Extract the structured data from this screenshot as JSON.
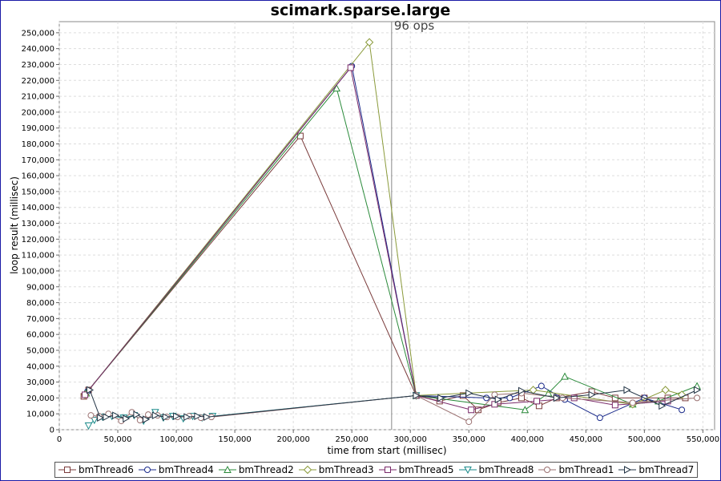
{
  "chart_data": {
    "type": "line",
    "title": "scimark.sparse.large",
    "xlabel": "time from start (millisec)",
    "ylabel": "loop result (millisec)",
    "xlim": [
      0,
      560000
    ],
    "ylim": [
      0,
      257000
    ],
    "x_ticks": [
      "0",
      "50,000",
      "100,000",
      "150,000",
      "200,000",
      "250,000",
      "300,000",
      "350,000",
      "400,000",
      "450,000",
      "500,000",
      "550,000"
    ],
    "y_ticks": [
      "0",
      "10,000",
      "20,000",
      "30,000",
      "40,000",
      "50,000",
      "60,000",
      "70,000",
      "80,000",
      "90,000",
      "100,000",
      "110,000",
      "120,000",
      "130,000",
      "140,000",
      "150,000",
      "160,000",
      "170,000",
      "180,000",
      "190,000",
      "200,000",
      "210,000",
      "220,000",
      "230,000",
      "240,000",
      "250,000"
    ],
    "grid": true,
    "legend_position": "bottom",
    "annotation": {
      "x": 284000,
      "label": "96 ops"
    },
    "series": [
      {
        "name": "bmThread6",
        "color": "#7a3b3b",
        "marker": "square",
        "points": [
          [
            21000,
            21000
          ],
          [
            25000,
            25000
          ],
          [
            206000,
            185000
          ],
          [
            305000,
            21500
          ],
          [
            325000,
            18000
          ],
          [
            345000,
            21500
          ],
          [
            358000,
            12500
          ],
          [
            375000,
            17000
          ],
          [
            395000,
            20000
          ],
          [
            410000,
            15000
          ],
          [
            425000,
            20000
          ],
          [
            455000,
            24000
          ],
          [
            475000,
            20000
          ],
          [
            500000,
            20000
          ],
          [
            520000,
            20000
          ],
          [
            535000,
            20000
          ]
        ]
      },
      {
        "name": "bmThread4",
        "color": "#1a2a8a",
        "marker": "circle",
        "points": [
          [
            24000,
            24000
          ],
          [
            250000,
            229000
          ],
          [
            305000,
            21500
          ],
          [
            365000,
            20000
          ],
          [
            385000,
            20000
          ],
          [
            412000,
            27500
          ],
          [
            432000,
            19000
          ],
          [
            462000,
            7500
          ],
          [
            500000,
            20000
          ],
          [
            532000,
            12500
          ]
        ]
      },
      {
        "name": "bmThread2",
        "color": "#2a8a3a",
        "marker": "triangle-up",
        "points": [
          [
            23000,
            23000
          ],
          [
            237000,
            215000
          ],
          [
            305000,
            21500
          ],
          [
            398000,
            12500
          ],
          [
            418000,
            23000
          ],
          [
            432000,
            33500
          ],
          [
            490000,
            16000
          ],
          [
            512000,
            18000
          ],
          [
            545000,
            27500
          ]
        ]
      },
      {
        "name": "bmThread3",
        "color": "#8a9a3a",
        "marker": "diamond",
        "points": [
          [
            22000,
            22000
          ],
          [
            265000,
            244000
          ],
          [
            305000,
            21500
          ],
          [
            405000,
            25000
          ],
          [
            490000,
            16000
          ],
          [
            518000,
            25000
          ],
          [
            532000,
            22000
          ]
        ]
      },
      {
        "name": "bmThread5",
        "color": "#7a2a6a",
        "marker": "square",
        "points": [
          [
            22000,
            22000
          ],
          [
            249000,
            228000
          ],
          [
            305000,
            21500
          ],
          [
            352000,
            12500
          ],
          [
            372000,
            16000
          ],
          [
            408000,
            18000
          ],
          [
            440000,
            20000
          ],
          [
            475000,
            15500
          ],
          [
            520000,
            18000
          ]
        ]
      },
      {
        "name": "bmThread8",
        "color": "#1a8a8a",
        "marker": "triangle-down",
        "points": [
          [
            25000,
            2500
          ],
          [
            30000,
            6000
          ],
          [
            37000,
            8000
          ],
          [
            45000,
            8500
          ],
          [
            55000,
            7500
          ],
          [
            64000,
            9000
          ],
          [
            72000,
            5500
          ],
          [
            82000,
            11000
          ],
          [
            89000,
            7500
          ],
          [
            97000,
            8500
          ],
          [
            106000,
            7000
          ],
          [
            114000,
            8500
          ],
          [
            122000,
            7500
          ],
          [
            131000,
            8500
          ],
          [
            305000,
            21500
          ]
        ]
      },
      {
        "name": "bmThread1",
        "color": "#9a7070",
        "marker": "circle",
        "points": [
          [
            27000,
            9000
          ],
          [
            34000,
            8500
          ],
          [
            42000,
            10000
          ],
          [
            53000,
            5500
          ],
          [
            62000,
            11000
          ],
          [
            69000,
            6000
          ],
          [
            76000,
            9500
          ],
          [
            84000,
            9000
          ],
          [
            92000,
            8000
          ],
          [
            101000,
            8000
          ],
          [
            111000,
            8500
          ],
          [
            121000,
            7500
          ],
          [
            130000,
            8000
          ],
          [
            305000,
            21500
          ],
          [
            350000,
            5000
          ],
          [
            372000,
            22000
          ],
          [
            395000,
            23000
          ],
          [
            430000,
            20000
          ],
          [
            490000,
            17000
          ],
          [
            545000,
            20000
          ]
        ]
      },
      {
        "name": "bmThread7",
        "color": "#223344",
        "marker": "triangle-right",
        "points": [
          [
            26000,
            25000
          ],
          [
            35000,
            7500
          ],
          [
            40000,
            8000
          ],
          [
            48000,
            9000
          ],
          [
            57000,
            7000
          ],
          [
            66000,
            9500
          ],
          [
            74000,
            6500
          ],
          [
            82000,
            9000
          ],
          [
            91000,
            8000
          ],
          [
            100000,
            8500
          ],
          [
            109000,
            8000
          ],
          [
            118000,
            8500
          ],
          [
            126000,
            8000
          ],
          [
            305000,
            21500
          ],
          [
            326000,
            20000
          ],
          [
            350000,
            23000
          ],
          [
            375000,
            19000
          ],
          [
            395000,
            24500
          ],
          [
            425000,
            20000
          ],
          [
            455000,
            22000
          ],
          [
            485000,
            25000
          ],
          [
            515000,
            15000
          ],
          [
            545000,
            25000
          ]
        ]
      }
    ]
  }
}
